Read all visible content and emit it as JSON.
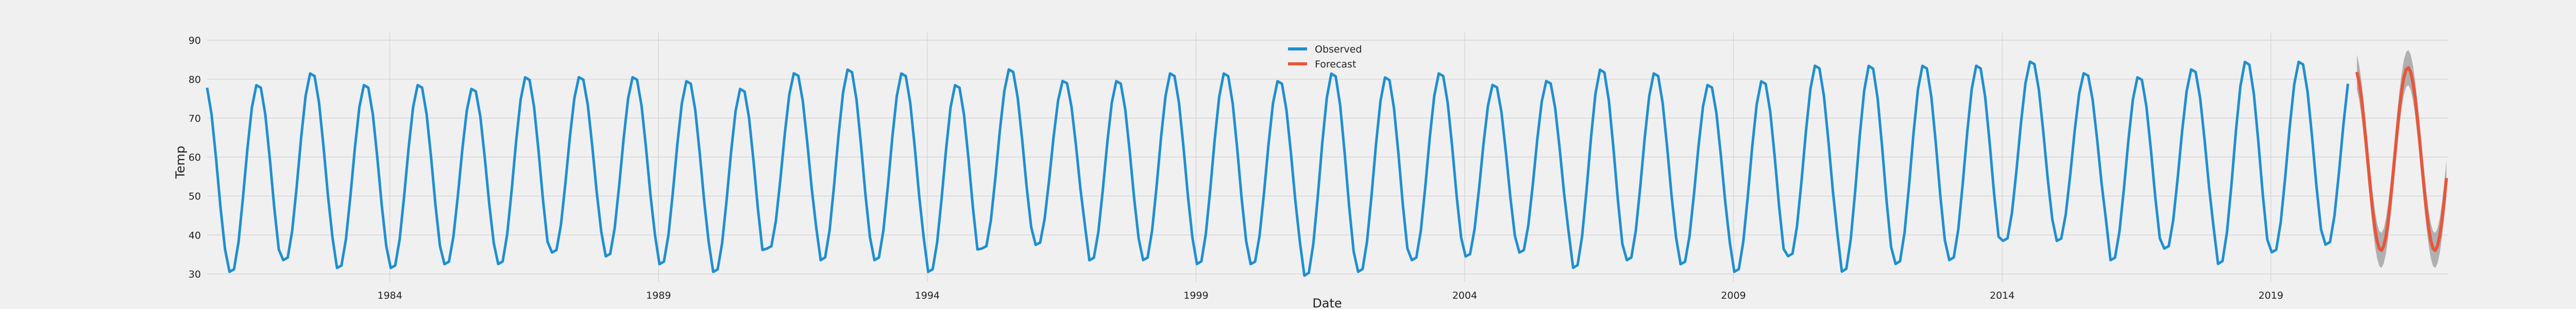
{
  "chart_data": {
    "type": "line",
    "title": "",
    "xlabel": "Date",
    "ylabel": "Temp",
    "ylim": [
      28,
      92
    ],
    "xlim": [
      1980.6,
      2022.3
    ],
    "y_ticks": [
      30,
      40,
      50,
      60,
      70,
      80,
      90
    ],
    "x_ticks": [
      {
        "value": 1984,
        "label": "1984"
      },
      {
        "value": 1989,
        "label": "1989"
      },
      {
        "value": 1994,
        "label": "1994"
      },
      {
        "value": 1999,
        "label": "1999"
      },
      {
        "value": 2004,
        "label": "2004"
      },
      {
        "value": 2009,
        "label": "2009"
      },
      {
        "value": 2014,
        "label": "2014"
      },
      {
        "value": 2019,
        "label": "2019"
      }
    ],
    "grid": true,
    "legend": {
      "placement": "upper-center"
    },
    "colors": {
      "observed": "#1f8fd0",
      "forecast": "#e8553a",
      "band": "#a9a9a9",
      "grid": "#d7d7d7",
      "background": "#f0f0f0"
    },
    "observed_range": {
      "start": 1980.6,
      "end": 2020.5,
      "step_months": 1
    },
    "observed_peaks": [
      79,
      82,
      79,
      79,
      78,
      81,
      81,
      81,
      80,
      78,
      82,
      83,
      82,
      79,
      83,
      80,
      80,
      82,
      82,
      80,
      82,
      81,
      82,
      79,
      80,
      83,
      82,
      79,
      80,
      84,
      84,
      84,
      84,
      85,
      82,
      81,
      83,
      85,
      85,
      85
    ],
    "observed_troughs": [
      30,
      33,
      31,
      31,
      32,
      32,
      35,
      34,
      32,
      30,
      36,
      33,
      33,
      30,
      36,
      37,
      33,
      33,
      32,
      32,
      29,
      30,
      33,
      34,
      35,
      31,
      33,
      32,
      30,
      34,
      30,
      32,
      33,
      38,
      38,
      33,
      36,
      32,
      35,
      37
    ],
    "forecast_range": {
      "start": 2020.6,
      "end": 2022.3,
      "step_months": 1
    },
    "forecast_peak": 83,
    "forecast_trough": 36,
    "band_halfwidth": 4.5,
    "series": [
      {
        "name": "Observed",
        "key": "observed"
      },
      {
        "name": "Forecast",
        "key": "forecast"
      }
    ]
  }
}
